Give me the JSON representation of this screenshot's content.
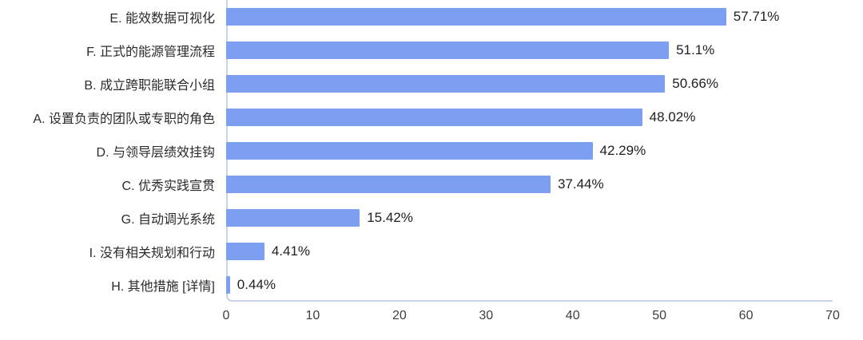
{
  "colors": {
    "bar": "#7C9FF2",
    "plot_border": "#C9D3EC",
    "category_text": "#2B2B2B",
    "value_text": "#212121",
    "tick_text": "#3F3F3F",
    "background": "#FFFFFF"
  },
  "chart_data": {
    "type": "bar",
    "orientation": "horizontal",
    "title": "",
    "xlabel": "",
    "ylabel": "",
    "xlim": [
      0,
      70
    ],
    "x_ticks": [
      0,
      10,
      20,
      30,
      40,
      50,
      60,
      70
    ],
    "grid": false,
    "legend": false,
    "sort_order": "descending",
    "categories": [
      "E. 能效数据可视化",
      "F. 正式的能源管理流程",
      "B. 成立跨职能联合小组",
      "A. 设置负责的团队或专职的角色",
      "D. 与领导层绩效挂钩",
      "C. 优秀实践宣贯",
      "G. 自动调光系统",
      "I. 没有相关规划和行动",
      "H. 其他措施 [详情]"
    ],
    "values": [
      57.71,
      51.1,
      50.66,
      48.02,
      42.29,
      37.44,
      15.42,
      4.41,
      0.44
    ],
    "value_labels": [
      "57.71%",
      "51.1%",
      "50.66%",
      "48.02%",
      "42.29%",
      "37.44%",
      "15.42%",
      "4.41%",
      "0.44%"
    ],
    "detail_link": {
      "row_index": 8,
      "text": "[详情]"
    }
  }
}
